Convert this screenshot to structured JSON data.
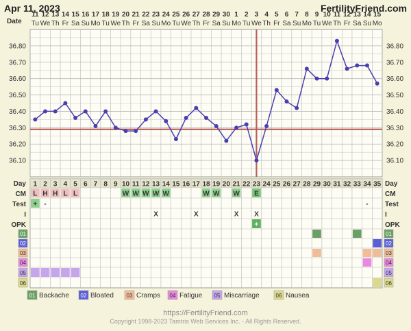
{
  "header": {
    "date": "Apr 11, 2023",
    "site": "FertilityFriend.com"
  },
  "footer": {
    "url": "https://FertilityFriend.com",
    "copyright": "Copyright 1998-2023 Tamtris Web Services Inc. - All Rights Reserved."
  },
  "colors": {
    "line": "#4a3fb0",
    "coverline": "#b5625a",
    "grid": "#b8b8b8",
    "plot_bg": "#fdfdf5",
    "page_bg": "#f5f3dc"
  },
  "chart_data": {
    "type": "line",
    "row_labels": {
      "date": "Date",
      "day": "Day",
      "cm": "CM",
      "test": "Test",
      "i": "I",
      "opk": "OPK"
    },
    "dates": [
      "11",
      "12",
      "13",
      "14",
      "15",
      "16",
      "17",
      "18",
      "19",
      "20",
      "21",
      "22",
      "23",
      "24",
      "25",
      "26",
      "27",
      "28",
      "29",
      "30",
      "1",
      "2",
      "3",
      "4",
      "5",
      "6",
      "7",
      "8",
      "9",
      "10",
      "11",
      "12",
      "13",
      "14",
      "15"
    ],
    "weekdays": [
      "Tu",
      "We",
      "Th",
      "Fr",
      "Sa",
      "Su",
      "Mo",
      "Tu",
      "We",
      "Th",
      "Fr",
      "Sa",
      "Su",
      "Mo",
      "Tu",
      "We",
      "Th",
      "Fr",
      "Sa",
      "Su",
      "Mo",
      "Tu",
      "We",
      "Th",
      "Fr",
      "Sa",
      "Su",
      "Mo",
      "Tu",
      "We",
      "Th",
      "Fr",
      "Sa",
      "Su",
      "Mo"
    ],
    "cycle_days": [
      "1",
      "2",
      "3",
      "4",
      "5",
      "6",
      "7",
      "8",
      "9",
      "10",
      "11",
      "12",
      "13",
      "14",
      "15",
      "16",
      "17",
      "18",
      "19",
      "20",
      "21",
      "22",
      "23",
      "24",
      "25",
      "26",
      "27",
      "28",
      "29",
      "30",
      "31",
      "32",
      "33",
      "34",
      "35"
    ],
    "temperatures": [
      36.35,
      36.4,
      36.4,
      36.45,
      36.36,
      36.4,
      36.31,
      36.4,
      36.3,
      36.28,
      36.28,
      36.35,
      36.4,
      36.34,
      36.23,
      36.36,
      36.42,
      36.36,
      36.31,
      36.22,
      36.3,
      36.32,
      36.1,
      36.31,
      36.53,
      36.46,
      36.42,
      36.66,
      36.6,
      36.6,
      36.83,
      36.66,
      36.68,
      36.68,
      36.57
    ],
    "ylim": [
      36.0,
      36.9
    ],
    "y_ticks": [
      "36.10",
      "36.20",
      "36.30",
      "36.40",
      "36.50",
      "36.60",
      "36.70",
      "36.80"
    ],
    "coverline": 36.29,
    "ovulation_day": 23,
    "cm": [
      {
        "day": 1,
        "label": "L"
      },
      {
        "day": 2,
        "label": "H"
      },
      {
        "day": 3,
        "label": "H"
      },
      {
        "day": 4,
        "label": "L"
      },
      {
        "day": 5,
        "label": "L"
      },
      {
        "day": 10,
        "label": "W"
      },
      {
        "day": 11,
        "label": "W"
      },
      {
        "day": 12,
        "label": "W"
      },
      {
        "day": 13,
        "label": "W"
      },
      {
        "day": 14,
        "label": "W"
      },
      {
        "day": 18,
        "label": "W"
      },
      {
        "day": 19,
        "label": "W"
      },
      {
        "day": 21,
        "label": "W"
      },
      {
        "day": 23,
        "label": "E"
      }
    ],
    "test": [
      {
        "day": 1,
        "label": "+"
      },
      {
        "day": 2,
        "label": "-"
      },
      {
        "day": 34,
        "label": "-"
      }
    ],
    "intercourse": [
      {
        "day": 13,
        "label": "X"
      },
      {
        "day": 17,
        "label": "X"
      },
      {
        "day": 21,
        "label": "X"
      },
      {
        "day": 23,
        "label": "X"
      }
    ],
    "opk": [
      {
        "day": 23,
        "label": "+"
      }
    ],
    "symptoms": [
      {
        "code": "01",
        "name": "Backache",
        "color": "#6aa065",
        "days": [
          29,
          33
        ]
      },
      {
        "code": "02",
        "name": "Bloated",
        "color": "#5a5fd8",
        "days": [
          35
        ]
      },
      {
        "code": "03",
        "name": "Cramps",
        "color": "#f0bd98",
        "days": [
          29,
          34,
          35
        ]
      },
      {
        "code": "04",
        "name": "Fatigue",
        "color": "#e889e0",
        "days": [
          34
        ]
      },
      {
        "code": "05",
        "name": "Miscarriage",
        "color": "#c5a6ec",
        "days": [
          1,
          2,
          3,
          4,
          5
        ]
      },
      {
        "code": "06",
        "name": "Nausea",
        "color": "#dad98c",
        "days": [
          35
        ]
      }
    ]
  }
}
